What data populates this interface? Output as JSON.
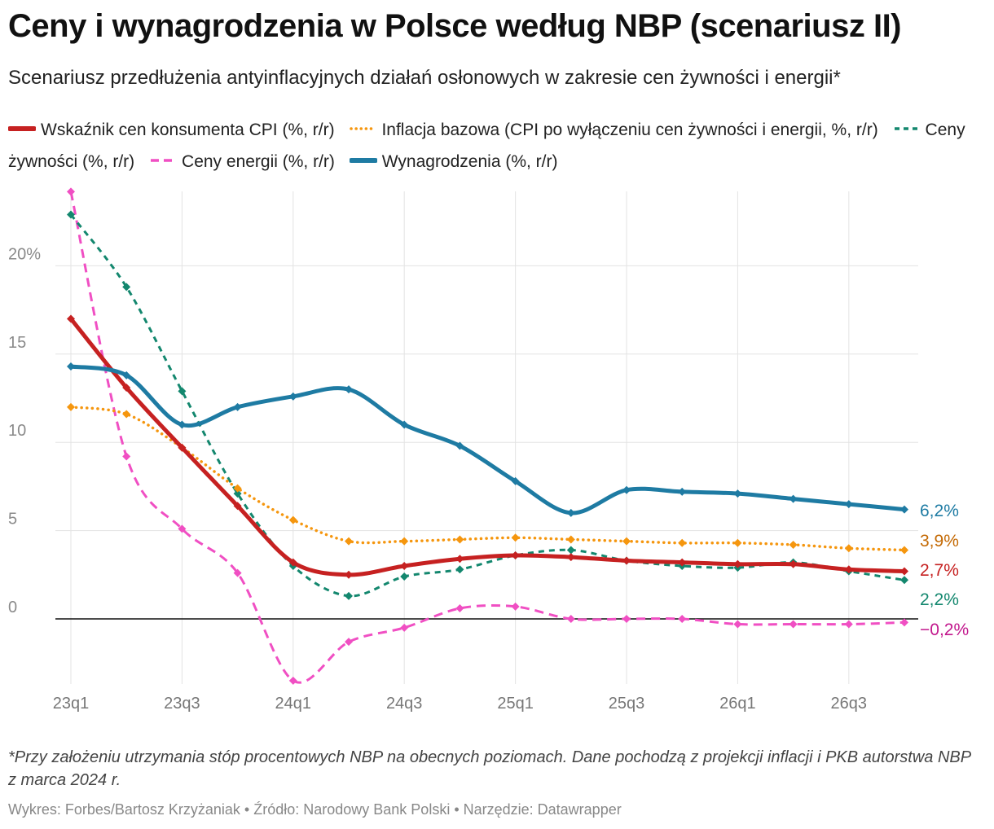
{
  "header": {
    "title": "Ceny i wynagrodzenia w Polsce według NBP (scenariusz II)",
    "subtitle": "Scenariusz przedłużenia antyinflacyjnych działań osłonowych w zakresie cen żywności i energii*"
  },
  "footer": {
    "note": "*Przy założeniu utrzymania stóp procentowych NBP na obecnych poziomach. Dane pochodzą z projekcji inflacji i PKB autorstwa NBP z marca 2024 r.",
    "credits": "Wykres: Forbes/Bartosz Krzyżaniak • Źródło: Narodowy Bank Polski • Narzędzie: Datawrapper"
  },
  "chart_data": {
    "type": "line",
    "title": "Ceny i wynagrodzenia w Polsce według NBP (scenariusz II)",
    "x": [
      "23q1",
      "23q2",
      "23q3",
      "23q4",
      "24q1",
      "24q2",
      "24q3",
      "24q4",
      "25q1",
      "25q2",
      "25q3",
      "25q4",
      "26q1",
      "26q2",
      "26q3",
      "26q4"
    ],
    "x_tick_labels": [
      "23q1",
      "23q3",
      "24q1",
      "24q3",
      "25q1",
      "25q3",
      "26q1",
      "26q3"
    ],
    "x_tick_indices": [
      0,
      2,
      4,
      6,
      8,
      10,
      12,
      14
    ],
    "ylim": [
      -3.8,
      24.5
    ],
    "y_ticks": [
      0,
      5,
      10,
      15,
      20
    ],
    "y_tick_labels": [
      "0",
      "5",
      "10",
      "15",
      "20%"
    ],
    "grid": true,
    "legend_position": "top",
    "series": [
      {
        "name": "Wskaźnik cen konsumenta CPI (%, r/r)",
        "style": "solid-thick",
        "color": "#c62121",
        "values": [
          17.0,
          13.1,
          9.7,
          6.4,
          3.2,
          2.5,
          3.0,
          3.4,
          3.6,
          3.5,
          3.3,
          3.2,
          3.1,
          3.1,
          2.8,
          2.7
        ],
        "end_label": "2,7%",
        "end_label_color": "#c62121"
      },
      {
        "name": "Inflacja bazowa (CPI po wyłączeniu cen żywności i energii, %, r/r)",
        "style": "dotted",
        "color": "#f5960e",
        "values": [
          12.0,
          11.6,
          9.7,
          7.4,
          5.6,
          4.4,
          4.4,
          4.5,
          4.6,
          4.5,
          4.4,
          4.3,
          4.3,
          4.2,
          4.0,
          3.9
        ],
        "end_label": "3,9%",
        "end_label_color": "#c46a05"
      },
      {
        "name": "Ceny żywności (%, r/r)",
        "style": "dashed",
        "color": "#13876e",
        "values": [
          22.9,
          18.8,
          12.9,
          7.1,
          3.0,
          1.3,
          2.4,
          2.8,
          3.6,
          3.9,
          3.3,
          3.0,
          2.9,
          3.2,
          2.7,
          2.2
        ],
        "end_label": "2,2%",
        "end_label_color": "#13876e"
      },
      {
        "name": "Ceny energii (%, r/r)",
        "style": "dashed-long",
        "color": "#f04fc3",
        "values": [
          24.2,
          9.2,
          5.1,
          2.6,
          -3.5,
          -1.3,
          -0.5,
          0.6,
          0.7,
          0.0,
          0.0,
          0.0,
          -0.3,
          -0.3,
          -0.3,
          -0.2
        ],
        "end_label": "−0,2%",
        "end_label_color": "#c2178d"
      },
      {
        "name": "Wynagrodzenia (%, r/r)",
        "style": "solid-thick",
        "color": "#1e7ba3",
        "values": [
          14.3,
          13.8,
          11.0,
          12.0,
          12.6,
          13.0,
          11.0,
          9.8,
          7.8,
          6.0,
          7.3,
          7.2,
          7.1,
          6.8,
          6.5,
          6.2
        ],
        "end_label": "6,2%",
        "end_label_color": "#1e7ba3"
      }
    ]
  }
}
